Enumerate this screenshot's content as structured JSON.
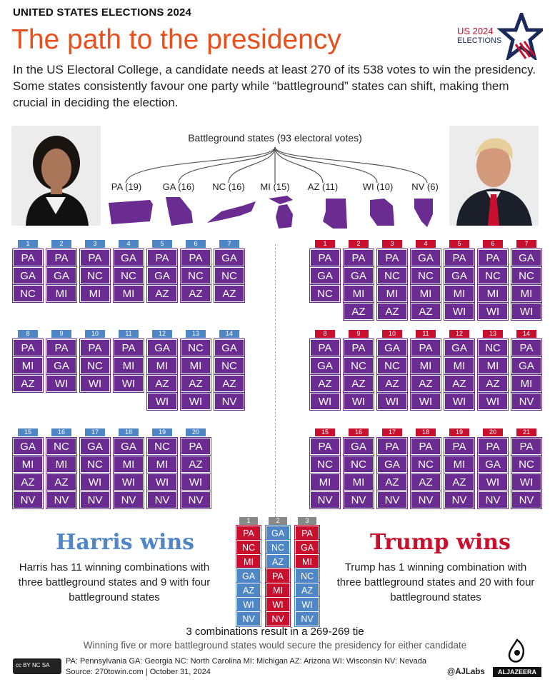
{
  "header": {
    "kicker": "UNITED STATES ELECTIONS 2024",
    "title": "The path to the presidency",
    "intro": "In the US Electoral College, a candidate needs at least 270 of its 538 votes to win the presidency. Some states consistently favour one party while “battleground” states can shift, making them crucial in deciding the election.",
    "logo_line1": "US 2024",
    "logo_line2": "ELECTIONS"
  },
  "battleground": {
    "label": "Battleground states (93 electoral votes)",
    "states": [
      "PA (19)",
      "GA (16)",
      "NC (16)",
      "MI (15)",
      "AZ (11)",
      "WI (10)",
      "NV (6)"
    ]
  },
  "harris": {
    "heading": "Harris wins",
    "text": "Harris has 11 winning combinations with three battleground states and 9 with four battleground states",
    "combos": [
      {
        "n": "1",
        "s": [
          "PA",
          "GA",
          "NC"
        ]
      },
      {
        "n": "2",
        "s": [
          "PA",
          "GA",
          "MI"
        ]
      },
      {
        "n": "3",
        "s": [
          "PA",
          "NC",
          "MI"
        ]
      },
      {
        "n": "4",
        "s": [
          "GA",
          "NC",
          "MI"
        ]
      },
      {
        "n": "5",
        "s": [
          "PA",
          "GA",
          "AZ"
        ]
      },
      {
        "n": "6",
        "s": [
          "PA",
          "NC",
          "AZ"
        ]
      },
      {
        "n": "7",
        "s": [
          "GA",
          "NC",
          "AZ"
        ]
      },
      {
        "n": "8",
        "s": [
          "PA",
          "MI",
          "AZ"
        ]
      },
      {
        "n": "9",
        "s": [
          "PA",
          "GA",
          "WI"
        ]
      },
      {
        "n": "10",
        "s": [
          "PA",
          "NC",
          "WI"
        ]
      },
      {
        "n": "11",
        "s": [
          "PA",
          "MI",
          "WI"
        ]
      },
      {
        "n": "12",
        "s": [
          "GA",
          "MI",
          "AZ",
          "WI"
        ]
      },
      {
        "n": "13",
        "s": [
          "NC",
          "MI",
          "AZ",
          "WI"
        ]
      },
      {
        "n": "14",
        "s": [
          "GA",
          "NC",
          "AZ",
          "NV"
        ]
      },
      {
        "n": "15",
        "s": [
          "GA",
          "MI",
          "AZ",
          "NV"
        ]
      },
      {
        "n": "16",
        "s": [
          "NC",
          "MI",
          "AZ",
          "NV"
        ]
      },
      {
        "n": "17",
        "s": [
          "GA",
          "NC",
          "WI",
          "NV"
        ]
      },
      {
        "n": "18",
        "s": [
          "GA",
          "MI",
          "WI",
          "NV"
        ]
      },
      {
        "n": "19",
        "s": [
          "NC",
          "MI",
          "WI",
          "NV"
        ]
      },
      {
        "n": "20",
        "s": [
          "PA",
          "AZ",
          "WI",
          "NV"
        ]
      }
    ]
  },
  "trump": {
    "heading": "Trump wins",
    "text": "Trump has 1 winning combination with three battleground states and 20 with four battleground states",
    "combos": [
      {
        "n": "1",
        "s": [
          "PA",
          "GA",
          "NC"
        ]
      },
      {
        "n": "2",
        "s": [
          "PA",
          "GA",
          "MI",
          "AZ"
        ]
      },
      {
        "n": "3",
        "s": [
          "PA",
          "NC",
          "MI",
          "AZ"
        ]
      },
      {
        "n": "4",
        "s": [
          "GA",
          "NC",
          "MI",
          "AZ"
        ]
      },
      {
        "n": "5",
        "s": [
          "PA",
          "GA",
          "MI",
          "WI"
        ]
      },
      {
        "n": "6",
        "s": [
          "PA",
          "NC",
          "MI",
          "WI"
        ]
      },
      {
        "n": "7",
        "s": [
          "GA",
          "NC",
          "MI",
          "WI"
        ]
      },
      {
        "n": "8",
        "s": [
          "PA",
          "GA",
          "AZ",
          "WI"
        ]
      },
      {
        "n": "9",
        "s": [
          "PA",
          "NC",
          "AZ",
          "WI"
        ]
      },
      {
        "n": "10",
        "s": [
          "GA",
          "NC",
          "AZ",
          "WI"
        ]
      },
      {
        "n": "11",
        "s": [
          "PA",
          "MI",
          "AZ",
          "WI"
        ]
      },
      {
        "n": "12",
        "s": [
          "GA",
          "MI",
          "AZ",
          "WI"
        ]
      },
      {
        "n": "13",
        "s": [
          "NC",
          "MI",
          "AZ",
          "WI"
        ]
      },
      {
        "n": "14",
        "s": [
          "PA",
          "GA",
          "MI",
          "NV"
        ]
      },
      {
        "n": "15",
        "s": [
          "PA",
          "NC",
          "MI",
          "NV"
        ]
      },
      {
        "n": "16",
        "s": [
          "GA",
          "NC",
          "MI",
          "NV"
        ]
      },
      {
        "n": "17",
        "s": [
          "PA",
          "GA",
          "AZ",
          "NV"
        ]
      },
      {
        "n": "18",
        "s": [
          "PA",
          "NC",
          "AZ",
          "NV"
        ]
      },
      {
        "n": "19",
        "s": [
          "PA",
          "MI",
          "AZ",
          "NV"
        ]
      },
      {
        "n": "20",
        "s": [
          "PA",
          "GA",
          "WI",
          "NV"
        ]
      },
      {
        "n": "21",
        "s": [
          "PA",
          "NC",
          "WI",
          "NV"
        ]
      }
    ]
  },
  "ties": {
    "combos": [
      {
        "n": "1",
        "cells": [
          {
            "s": "PA",
            "p": "R"
          },
          {
            "s": "NC",
            "p": "R"
          },
          {
            "s": "MI",
            "p": "R"
          },
          {
            "s": "GA",
            "p": "D"
          },
          {
            "s": "AZ",
            "p": "D"
          },
          {
            "s": "WI",
            "p": "D"
          },
          {
            "s": "NV",
            "p": "D"
          }
        ]
      },
      {
        "n": "2",
        "cells": [
          {
            "s": "GA",
            "p": "D"
          },
          {
            "s": "NC",
            "p": "D"
          },
          {
            "s": "AZ",
            "p": "D"
          },
          {
            "s": "PA",
            "p": "R"
          },
          {
            "s": "MI",
            "p": "R"
          },
          {
            "s": "WI",
            "p": "R"
          },
          {
            "s": "NV",
            "p": "R"
          }
        ]
      },
      {
        "n": "3",
        "cells": [
          {
            "s": "PA",
            "p": "R"
          },
          {
            "s": "GA",
            "p": "R"
          },
          {
            "s": "MI",
            "p": "R"
          },
          {
            "s": "NC",
            "p": "D"
          },
          {
            "s": "AZ",
            "p": "D"
          },
          {
            "s": "WI",
            "p": "D"
          },
          {
            "s": "NV",
            "p": "D"
          }
        ]
      }
    ],
    "tie_text": "3 combinations result in a 269-269 tie",
    "five_text": "Winning five or more battleground states would secure the presidency for either candidate"
  },
  "footer": {
    "legend": "PA: Pennsylvania GA: Georgia NC: North Carolina MI: Michigan AZ: Arizona WI: Wisconsin NV: Nevada",
    "source": "Source:  270towin.com      |      October 31, 2024",
    "handle": "@AJLabs",
    "brand": "ALJAZEERA",
    "license": "cc BY NC SA"
  },
  "colors": {
    "harris": "#4f86c6",
    "trump": "#c8102e",
    "battleground": "#6a2c91",
    "accent": "#e8501e"
  }
}
